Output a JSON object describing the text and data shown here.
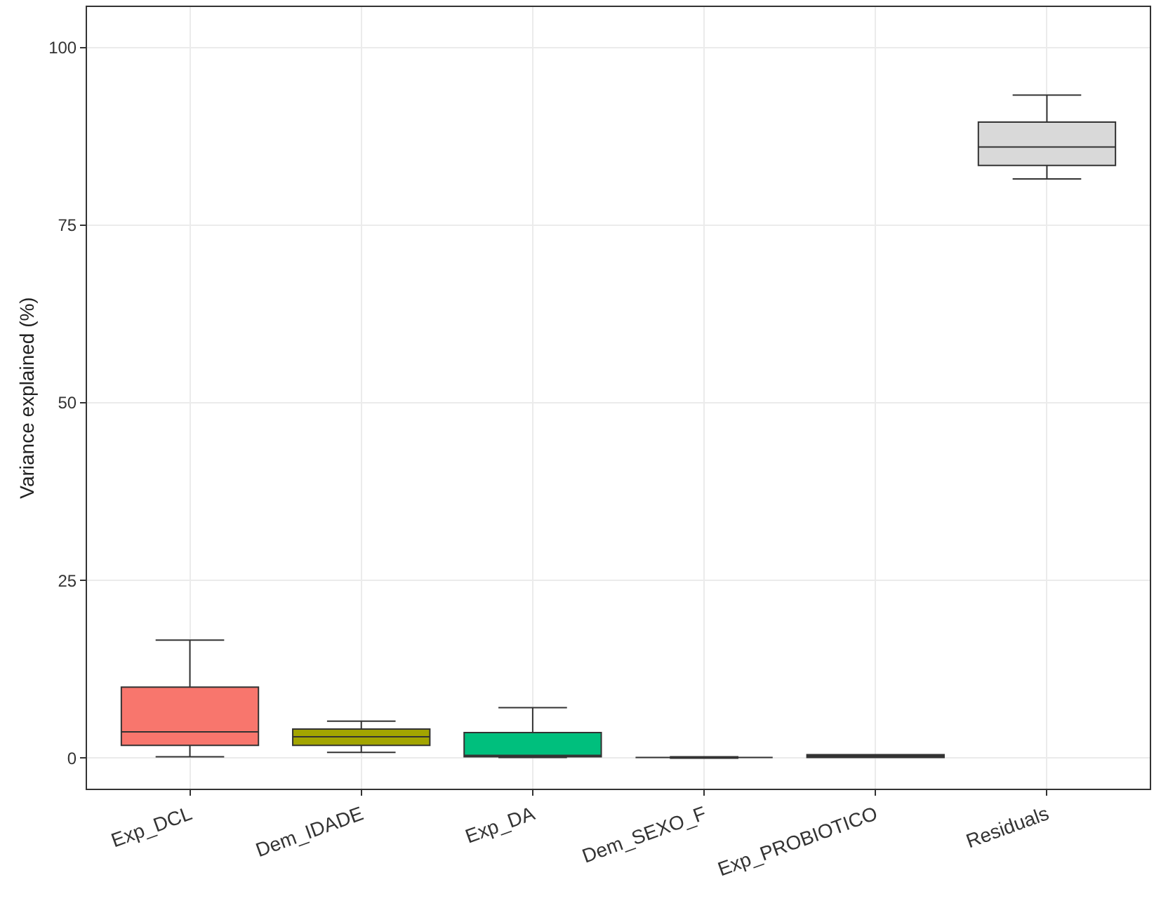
{
  "chart_data": {
    "type": "box",
    "ylabel": "Variance explained (%)",
    "categories": [
      "Exp_DCL",
      "Dem_IDADE",
      "Exp_DA",
      "Dem_SEXO_F",
      "Exp_PROBIOTICO",
      "Residuals"
    ],
    "colors": [
      "#f8766d",
      "#a3a500",
      "#00bf7d",
      "#333333",
      "#e76bf3",
      "#d9d9d9"
    ],
    "boxes": [
      {
        "low": 0.2,
        "q1": 1.8,
        "median": 3.7,
        "q3": 10,
        "high": 16.6
      },
      {
        "low": 0.8,
        "q1": 1.8,
        "median": 3,
        "q3": 4.1,
        "high": 5.2
      },
      {
        "low": 0.1,
        "q1": 0.2,
        "median": 0.4,
        "q3": 3.6,
        "high": 7.1
      },
      {
        "low": 0,
        "q1": 0.1,
        "median": 0.1,
        "q3": 0.1,
        "high": 0.2
      },
      {
        "low": 0.1,
        "q1": 0.1,
        "median": 0.2,
        "q3": 0.5,
        "high": 0.5
      },
      {
        "low": 81.5,
        "q1": 83.4,
        "median": 86,
        "q3": 89.5,
        "high": 93.3
      }
    ],
    "ylim": [
      -4.3,
      105.7
    ],
    "yticks": [
      0,
      25,
      50,
      75,
      100
    ],
    "grid": true
  }
}
